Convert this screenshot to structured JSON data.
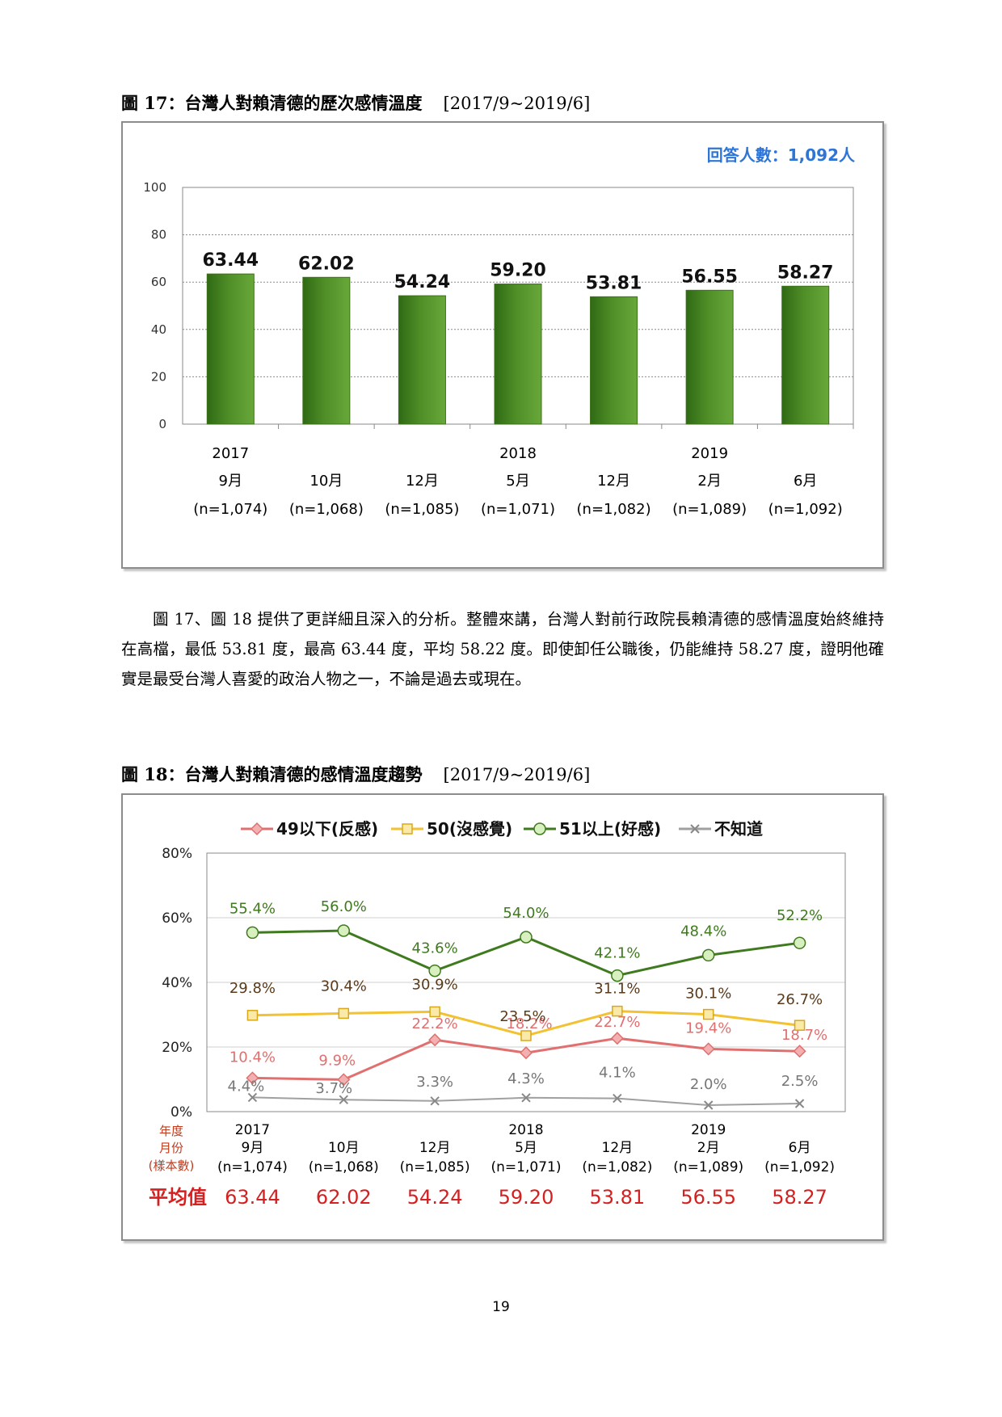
{
  "fig17": {
    "caption": "圖 17：台灣人對賴清德的歷次感情溫度",
    "range": "[2017/9~2019/6]",
    "respondents": "回答人數：1,092人"
  },
  "fig18": {
    "caption": "圖 18：台灣人對賴清德的感情溫度趨勢",
    "range": "[2017/9~2019/6]",
    "row_year": "年度",
    "row_month": "月份",
    "row_sample": "(樣本數)",
    "avg_label": "平均值"
  },
  "paragraph": "圖 17、圖 18 提供了更詳細且深入的分析。整體來講，台灣人對前行政院長賴清德的感情溫度始終維持在高檔，最低 53.81 度，最高 63.44 度，平均 58.22 度。即使卸任公職後，仍能維持 58.27 度，證明他確實是最受台灣人喜愛的政治人物之一，不論是過去或現在。",
  "page_number": "19",
  "colors": {
    "bar": "#4f8d27",
    "neg": "#e07070",
    "neutral": "#f2c232",
    "pos": "#3f7a1e",
    "unknown": "#a0a0a0",
    "respondents": "#2e75d6",
    "avg": "#d42020"
  },
  "chart_data": [
    {
      "type": "bar",
      "categories": [
        "2017 9月",
        "10月",
        "12月",
        "2018 5月",
        "12月",
        "2019 2月",
        "6月"
      ],
      "years": [
        "2017",
        "",
        "",
        "2018",
        "",
        "2019",
        ""
      ],
      "months": [
        "9月",
        "10月",
        "12月",
        "5月",
        "12月",
        "2月",
        "6月"
      ],
      "samples": [
        "(n=1,074)",
        "(n=1,068)",
        "(n=1,085)",
        "(n=1,071)",
        "(n=1,082)",
        "(n=1,089)",
        "(n=1,092)"
      ],
      "values": [
        63.44,
        62.02,
        54.24,
        59.2,
        53.81,
        56.55,
        58.27
      ],
      "labels": [
        "63.44",
        "62.02",
        "54.24",
        "59.20",
        "53.81",
        "56.55",
        "58.27"
      ],
      "ylim": [
        0,
        100
      ],
      "yticks": [
        "0",
        "20",
        "40",
        "60",
        "80",
        "100"
      ],
      "grid": true
    },
    {
      "type": "line",
      "categories": [
        "2017 9月",
        "10月",
        "12月",
        "2018 5月",
        "12月",
        "2019 2月",
        "6月"
      ],
      "years": [
        "2017",
        "",
        "",
        "2018",
        "",
        "2019",
        ""
      ],
      "months": [
        "9月",
        "10月",
        "12月",
        "5月",
        "12月",
        "2月",
        "6月"
      ],
      "samples": [
        "(n=1,074)",
        "(n=1,068)",
        "(n=1,085)",
        "(n=1,071)",
        "(n=1,082)",
        "(n=1,089)",
        "(n=1,092)"
      ],
      "averages": [
        "63.44",
        "62.02",
        "54.24",
        "59.20",
        "53.81",
        "56.55",
        "58.27"
      ],
      "ylim": [
        0,
        80
      ],
      "yticks": [
        "0%",
        "20%",
        "40%",
        "60%",
        "80%"
      ],
      "legend_position": "top",
      "grid": true,
      "series": [
        {
          "name": "49以下(反感)",
          "key": "neg",
          "marker": "diamond",
          "values": [
            10.4,
            9.9,
            22.2,
            18.2,
            22.7,
            19.4,
            18.7
          ],
          "labels": [
            "10.4%",
            "9.9%",
            "22.2%",
            "18.2%",
            "22.7%",
            "19.4%",
            "18.7%"
          ]
        },
        {
          "name": "50(沒感覺)",
          "key": "neutral",
          "marker": "square",
          "values": [
            29.8,
            30.4,
            30.9,
            23.5,
            31.1,
            30.1,
            26.7
          ],
          "labels": [
            "29.8%",
            "30.4%",
            "30.9%",
            "23.5%",
            "31.1%",
            "30.1%",
            "26.7%"
          ]
        },
        {
          "name": "51以上(好感)",
          "key": "pos",
          "marker": "circle",
          "values": [
            55.4,
            56.0,
            43.6,
            54.0,
            42.1,
            48.4,
            52.2
          ],
          "labels": [
            "55.4%",
            "56.0%",
            "43.6%",
            "54.0%",
            "42.1%",
            "48.4%",
            "52.2%"
          ]
        },
        {
          "name": "不知道",
          "key": "unknown",
          "marker": "x",
          "values": [
            4.4,
            3.7,
            3.3,
            4.3,
            4.1,
            2.0,
            2.5
          ],
          "labels": [
            "4.4%",
            "3.7%",
            "3.3%",
            "4.3%",
            "4.1%",
            "2.0%",
            "2.5%"
          ]
        }
      ]
    }
  ]
}
